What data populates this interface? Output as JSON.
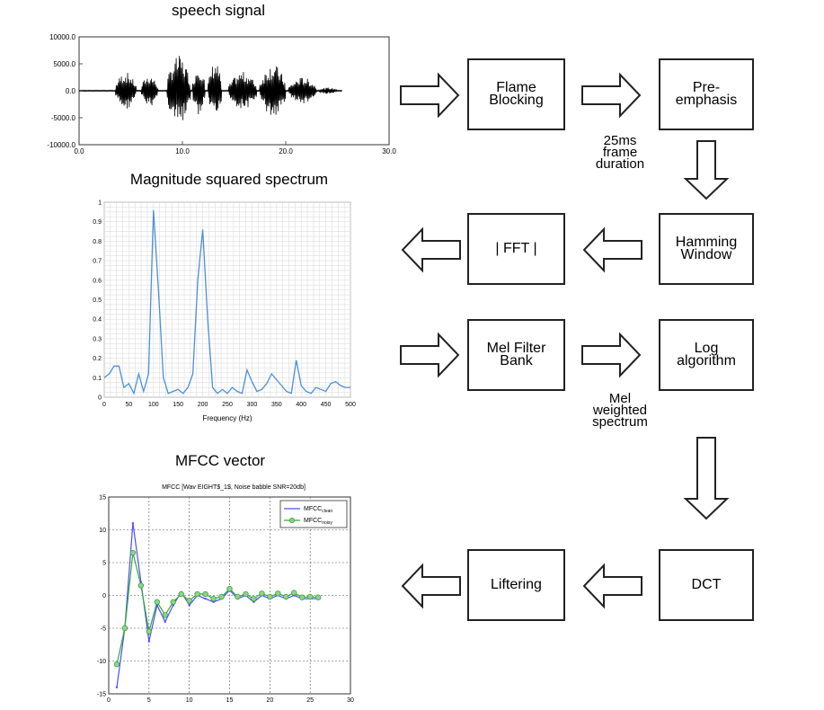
{
  "titles": {
    "speech": "speech signal",
    "spectrum": "Magnitude squared spectrum",
    "mfcc": "MFCC vector"
  },
  "boxes": {
    "flame": "Flame\nBlocking",
    "pre": "Pre-\nemphasis",
    "hamming": "Hamming\nWindow",
    "fft": "| FFT |",
    "mel": "Mel Filter\nBank",
    "log": "Log\nalgorithm",
    "dct": "DCT",
    "liftering": "Liftering"
  },
  "notes": {
    "frame": "25ms\nframe\nduration",
    "melw": "Mel\nweighted\nspectrum"
  },
  "chart_data": [
    {
      "type": "line",
      "title": "speech signal",
      "x_ticks": [
        "0.0",
        "10.0",
        "20.0",
        "30.0"
      ],
      "y_ticks": [
        "10000.0",
        "5000.0",
        "0.0",
        "-5000.0",
        "-10000.0"
      ],
      "xlim": [
        0,
        30
      ],
      "ylim": [
        -10000,
        10000
      ],
      "bursts": [
        {
          "start": 3.5,
          "end": 5.5,
          "amp": 3500
        },
        {
          "start": 6.0,
          "end": 7.6,
          "amp": 3000
        },
        {
          "start": 8.5,
          "end": 10.8,
          "amp": 6500
        },
        {
          "start": 11.0,
          "end": 12.2,
          "amp": 5000
        },
        {
          "start": 12.5,
          "end": 13.8,
          "amp": 5500
        },
        {
          "start": 14.5,
          "end": 17.2,
          "amp": 3500
        },
        {
          "start": 17.5,
          "end": 20.0,
          "amp": 5000
        },
        {
          "start": 20.3,
          "end": 23.0,
          "amp": 2500
        },
        {
          "start": 23.2,
          "end": 25.0,
          "amp": 600
        }
      ]
    },
    {
      "type": "line",
      "title": "Magnitude squared spectrum",
      "xlabel": "Frequency (Hz)",
      "x_ticks": [
        "0",
        "50",
        "100",
        "150",
        "200",
        "250",
        "300",
        "350",
        "400",
        "450",
        "500"
      ],
      "y_ticks": [
        "1",
        "0.9",
        "0.8",
        "0.7",
        "0.6",
        "0.5",
        "0.4",
        "0.3",
        "0.2",
        "0.1",
        "0"
      ],
      "xlim": [
        0,
        500
      ],
      "ylim": [
        0,
        1
      ],
      "x": [
        0,
        10,
        20,
        30,
        40,
        50,
        60,
        70,
        80,
        90,
        100,
        110,
        120,
        130,
        140,
        150,
        160,
        170,
        180,
        190,
        200,
        210,
        220,
        230,
        240,
        250,
        260,
        270,
        280,
        290,
        300,
        310,
        320,
        330,
        340,
        350,
        360,
        370,
        380,
        390,
        400,
        410,
        420,
        430,
        440,
        450,
        460,
        470,
        480,
        490,
        500
      ],
      "values": [
        0.1,
        0.12,
        0.16,
        0.16,
        0.05,
        0.07,
        0.02,
        0.12,
        0.03,
        0.12,
        0.96,
        0.55,
        0.1,
        0.02,
        0.03,
        0.04,
        0.02,
        0.05,
        0.12,
        0.6,
        0.86,
        0.4,
        0.05,
        0.02,
        0.04,
        0.02,
        0.05,
        0.03,
        0.02,
        0.14,
        0.08,
        0.03,
        0.04,
        0.07,
        0.12,
        0.09,
        0.06,
        0.03,
        0.02,
        0.19,
        0.06,
        0.03,
        0.02,
        0.05,
        0.04,
        0.03,
        0.07,
        0.08,
        0.06,
        0.05,
        0.05
      ]
    },
    {
      "type": "line",
      "title": "MFCC [Wav EIGHT$_1$, Noise babble SNR=20db]",
      "x_ticks": [
        "0",
        "5",
        "10",
        "15",
        "20",
        "25",
        "30"
      ],
      "y_ticks": [
        "15",
        "10",
        "5",
        "0",
        "-5",
        "-10",
        "-15"
      ],
      "xlim": [
        0,
        30
      ],
      "ylim": [
        -15,
        15
      ],
      "x": [
        1,
        2,
        3,
        4,
        5,
        6,
        7,
        8,
        9,
        10,
        11,
        12,
        13,
        14,
        15,
        16,
        17,
        18,
        19,
        20,
        21,
        22,
        23,
        24,
        25,
        26
      ],
      "series": [
        {
          "name": "MFCC clean",
          "color": "#4d4dff",
          "values": [
            -14,
            -5,
            11,
            2,
            -7,
            -1.5,
            -4,
            -1.5,
            0.5,
            -1.5,
            0,
            -0.5,
            -1,
            -0.5,
            0.8,
            -0.5,
            0,
            -1,
            0,
            -0.5,
            0,
            -0.5,
            0,
            -0.5,
            -0.5,
            -0.5
          ]
        },
        {
          "name": "MFCC noisy",
          "color": "#33aa33",
          "values": [
            -10.5,
            -5,
            6.5,
            1.5,
            -5.5,
            -1,
            -3,
            -1,
            0.2,
            -0.8,
            0.2,
            0.2,
            -0.5,
            -0.2,
            1,
            -0.2,
            0.2,
            -0.5,
            0.3,
            -0.2,
            0.3,
            -0.2,
            0.4,
            -0.3,
            -0.2,
            -0.3
          ]
        }
      ],
      "legend": [
        "MFCC",
        "clean",
        "MFCC",
        "noisy"
      ],
      "legend_placement": "top-right"
    }
  ]
}
